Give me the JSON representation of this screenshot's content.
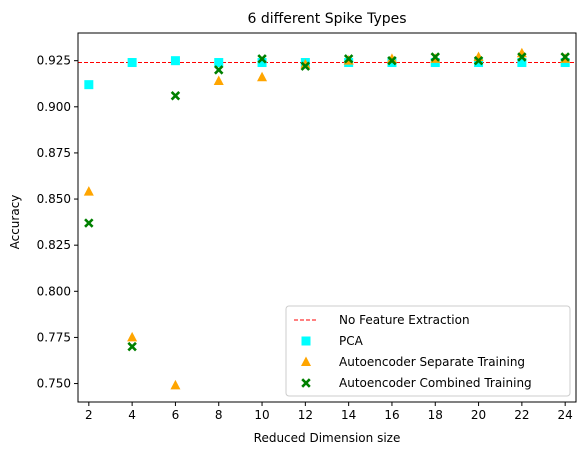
{
  "chart_data": {
    "type": "scatter",
    "title": "6 different Spike Types",
    "xlabel": "Reduced Dimension size",
    "ylabel": "Accuracy",
    "xlim": [
      1.5,
      24.5
    ],
    "ylim": [
      0.74,
      0.94
    ],
    "x_ticks": [
      2,
      4,
      6,
      8,
      10,
      12,
      14,
      16,
      18,
      20,
      22,
      24
    ],
    "y_ticks": [
      0.75,
      0.775,
      0.8,
      0.825,
      0.85,
      0.875,
      0.9,
      0.925
    ],
    "y_tick_labels": [
      "0.750",
      "0.775",
      "0.800",
      "0.825",
      "0.850",
      "0.875",
      "0.900",
      "0.925"
    ],
    "grid": false,
    "legend_position": "bottom-right",
    "reference_line": {
      "name": "No Feature Extraction",
      "y": 0.924,
      "color": "#ff0000",
      "style": "dashed"
    },
    "series": [
      {
        "name": "PCA",
        "marker": "square",
        "color": "#00ffff",
        "x": [
          2,
          4,
          6,
          8,
          10,
          12,
          14,
          16,
          18,
          20,
          22,
          24
        ],
        "y": [
          0.912,
          0.924,
          0.925,
          0.924,
          0.924,
          0.924,
          0.924,
          0.924,
          0.924,
          0.924,
          0.924,
          0.924
        ]
      },
      {
        "name": "Autoencoder Separate Training",
        "marker": "triangle",
        "color": "#ffa500",
        "x": [
          2,
          4,
          6,
          8,
          10,
          12,
          14,
          16,
          18,
          20,
          22,
          24
        ],
        "y": [
          0.854,
          0.775,
          0.749,
          0.914,
          0.916,
          0.923,
          0.925,
          0.926,
          0.926,
          0.927,
          0.929,
          0.926
        ]
      },
      {
        "name": "Autoencoder Combined Training",
        "marker": "x",
        "color": "#008000",
        "x": [
          2,
          4,
          6,
          8,
          10,
          12,
          14,
          16,
          18,
          20,
          22,
          24
        ],
        "y": [
          0.837,
          0.77,
          0.906,
          0.92,
          0.926,
          0.922,
          0.926,
          0.925,
          0.927,
          0.925,
          0.927,
          0.927
        ]
      }
    ]
  }
}
